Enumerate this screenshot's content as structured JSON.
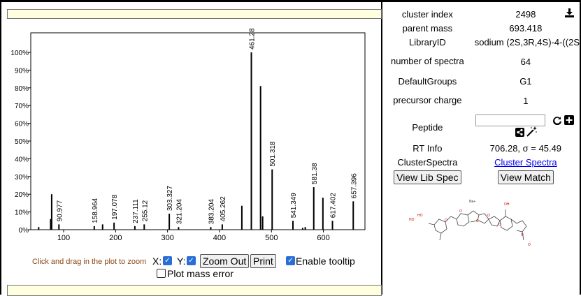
{
  "spectrum": {
    "y_ticks": [
      "100%",
      "90%",
      "80%",
      "70%",
      "60%",
      "50%",
      "40%",
      "30%",
      "20%",
      "10%",
      "0%"
    ],
    "x_ticks": [
      "100",
      "200",
      "300",
      "400",
      "500",
      "600"
    ],
    "peak_labels": [
      "90.977",
      "158.964",
      "197.078",
      "237.111",
      "255.12",
      "303.327",
      "321.204",
      "383.204",
      "405.262",
      "461.28",
      "501.318",
      "541.349",
      "581.38",
      "617.402",
      "657.396"
    ]
  },
  "chart_data": {
    "type": "bar",
    "title": "",
    "xlabel": "",
    "ylabel": "",
    "xlim": [
      40,
      670
    ],
    "ylim": [
      0,
      100
    ],
    "peaks": [
      {
        "mz": 52,
        "intensity": 1.5
      },
      {
        "mz": 75,
        "intensity": 6
      },
      {
        "mz": 77,
        "intensity": 20
      },
      {
        "mz": 90.977,
        "intensity": 3
      },
      {
        "mz": 158.964,
        "intensity": 2
      },
      {
        "mz": 175,
        "intensity": 3
      },
      {
        "mz": 197.078,
        "intensity": 4
      },
      {
        "mz": 237.111,
        "intensity": 2
      },
      {
        "mz": 255.12,
        "intensity": 3
      },
      {
        "mz": 303.327,
        "intensity": 9
      },
      {
        "mz": 321.204,
        "intensity": 1.5
      },
      {
        "mz": 383.204,
        "intensity": 1.5
      },
      {
        "mz": 405.262,
        "intensity": 3
      },
      {
        "mz": 443,
        "intensity": 13.5
      },
      {
        "mz": 461.28,
        "intensity": 100
      },
      {
        "mz": 479,
        "intensity": 81
      },
      {
        "mz": 483,
        "intensity": 7.5
      },
      {
        "mz": 501.318,
        "intensity": 34
      },
      {
        "mz": 541.349,
        "intensity": 5
      },
      {
        "mz": 560,
        "intensity": 1
      },
      {
        "mz": 565,
        "intensity": 1.5
      },
      {
        "mz": 581.38,
        "intensity": 24
      },
      {
        "mz": 599,
        "intensity": 18
      },
      {
        "mz": 617.402,
        "intensity": 5
      },
      {
        "mz": 657.396,
        "intensity": 16
      }
    ]
  },
  "controls": {
    "hint": "Click and drag in the plot to zoom",
    "x_label": "X:",
    "y_label": "Y:",
    "zoom_out": "Zoom Out",
    "print": "Print",
    "tooltip": "Enable tooltip",
    "mass_error": "Plot mass error"
  },
  "info": {
    "cluster_index_label": "cluster index",
    "cluster_index": "2498",
    "parent_mass_label": "parent mass",
    "parent_mass": "693.418",
    "library_id_label": "LibraryID",
    "library_id": "sodium (2S,3R,4S)-4-((2S",
    "num_spectra_label": "number of spectra",
    "num_spectra": "64",
    "default_groups_label": "DefaultGroups",
    "default_groups": "G1",
    "precursor_charge_label": "precursor charge",
    "precursor_charge": "1",
    "peptide_label": "Peptide",
    "peptide_value": "",
    "rt_label": "RT Info",
    "rt_value": "706.28, σ = 45.49",
    "cluster_spectra_label": "ClusterSpectra",
    "cluster_spectra_link": "Cluster Spectra",
    "view_lib_spec": "View Lib Spec",
    "view_match": "View Match"
  },
  "structure": {
    "labels": [
      "Na+",
      "HO",
      "HO",
      "OH",
      "O",
      "O",
      "O",
      "O",
      "O",
      "O",
      "O"
    ]
  }
}
